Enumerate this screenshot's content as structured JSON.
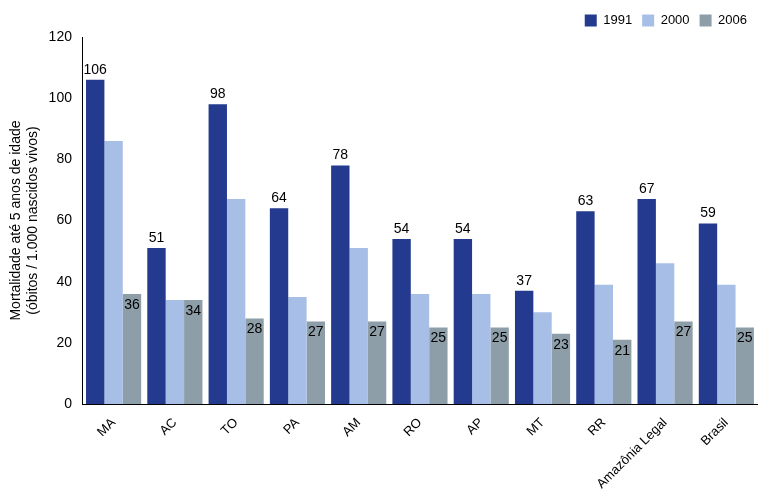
{
  "chart_data": {
    "type": "bar",
    "y_label": [
      "Mortalidade até 5 anos de idade",
      "(óbitos / 1.000 nascidos vivos)"
    ],
    "categories": [
      "MA",
      "AC",
      "TO",
      "PA",
      "AM",
      "RO",
      "AP",
      "MT",
      "RR",
      "Amazônia Legal",
      "Brasil"
    ],
    "series": [
      {
        "name": "1991",
        "color": "#233a8e",
        "data_labels": true,
        "values": [
          106,
          51,
          98,
          64,
          78,
          54,
          54,
          37,
          63,
          67,
          59
        ]
      },
      {
        "name": "2000",
        "color": "#a7bfe6",
        "data_labels": false,
        "values": [
          86,
          34,
          67,
          35,
          51,
          36,
          36,
          30,
          39,
          46,
          39
        ]
      },
      {
        "name": "2006",
        "color": "#8e9ea9",
        "data_labels": true,
        "values": [
          36,
          34,
          28,
          27,
          27,
          25,
          25,
          23,
          21,
          27,
          25
        ]
      }
    ],
    "ylim": [
      0,
      120
    ],
    "yticks": [
      0,
      20,
      40,
      60,
      80,
      100,
      120
    ],
    "grid": false,
    "legend": "top-right"
  }
}
